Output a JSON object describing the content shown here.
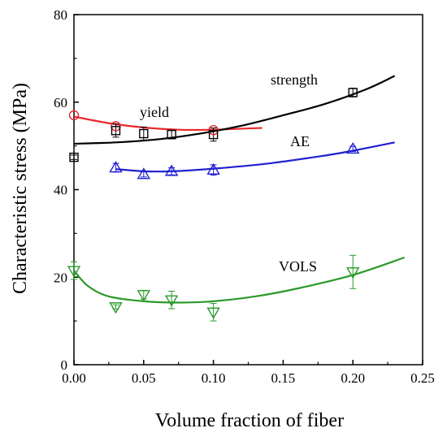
{
  "chart_data": {
    "type": "scatter",
    "xlabel": "Volume fraction of fiber",
    "ylabel": "Characteristic stress (MPa)",
    "xlim": [
      0.0,
      0.25
    ],
    "ylim": [
      0,
      80
    ],
    "x_ticks": [
      "0.00",
      "0.05",
      "0.10",
      "0.15",
      "0.20",
      "0.25"
    ],
    "y_ticks": [
      "0",
      "20",
      "40",
      "60",
      "80"
    ],
    "grid": false,
    "legend": "none",
    "series": [
      {
        "name": "yield",
        "color": "#e8282d",
        "marker": "circle",
        "points": [
          [
            0.0,
            57.0
          ],
          [
            0.03,
            54.5
          ],
          [
            0.1,
            53.6
          ]
        ],
        "fit_curve": [
          [
            0.0,
            56.7
          ],
          [
            0.025,
            55.2
          ],
          [
            0.05,
            54.2
          ],
          [
            0.075,
            53.7
          ],
          [
            0.1,
            53.7
          ],
          [
            0.125,
            54.0
          ],
          [
            0.135,
            54.1
          ]
        ]
      },
      {
        "name": "strength",
        "color": "#000000",
        "marker": "square",
        "points": [
          [
            0.0,
            47.4
          ],
          [
            0.03,
            53.5
          ],
          [
            0.05,
            52.8
          ],
          [
            0.07,
            52.6
          ],
          [
            0.1,
            52.6
          ],
          [
            0.2,
            62.2
          ]
        ],
        "error": [
          0.5,
          1.5,
          1.5,
          1.0,
          1.5,
          1.0
        ],
        "fit_curve": [
          [
            0.0,
            50.5
          ],
          [
            0.03,
            50.8
          ],
          [
            0.06,
            51.5
          ],
          [
            0.09,
            52.8
          ],
          [
            0.12,
            54.6
          ],
          [
            0.15,
            57.0
          ],
          [
            0.18,
            59.6
          ],
          [
            0.21,
            63.0
          ],
          [
            0.23,
            66.0
          ]
        ]
      },
      {
        "name": "AE",
        "color": "#2020d0",
        "marker": "triangle-up",
        "points": [
          [
            0.03,
            45.0
          ],
          [
            0.05,
            43.5
          ],
          [
            0.07,
            44.2
          ],
          [
            0.1,
            44.5
          ],
          [
            0.2,
            49.3
          ]
        ],
        "error": [
          1.0,
          0.6,
          0.8,
          1.2,
          0.6
        ],
        "fit_curve": [
          [
            0.03,
            44.7
          ],
          [
            0.05,
            44.2
          ],
          [
            0.07,
            44.2
          ],
          [
            0.1,
            44.8
          ],
          [
            0.14,
            46.0
          ],
          [
            0.18,
            47.8
          ],
          [
            0.2,
            48.9
          ],
          [
            0.23,
            50.8
          ]
        ]
      },
      {
        "name": "VOLS",
        "color": "#2a9a2a",
        "marker": "triangle-down",
        "points": [
          [
            0.0,
            21.5
          ],
          [
            0.03,
            13.2
          ],
          [
            0.05,
            16.0
          ],
          [
            0.07,
            14.8
          ],
          [
            0.1,
            12.0
          ],
          [
            0.2,
            21.2
          ]
        ],
        "error": [
          2.0,
          0.5,
          1.0,
          2.0,
          2.0,
          3.8
        ],
        "fit_curve": [
          [
            0.0,
            21.5
          ],
          [
            0.01,
            18.0
          ],
          [
            0.025,
            15.6
          ],
          [
            0.05,
            14.5
          ],
          [
            0.075,
            14.2
          ],
          [
            0.1,
            14.5
          ],
          [
            0.13,
            15.6
          ],
          [
            0.16,
            17.4
          ],
          [
            0.2,
            20.5
          ],
          [
            0.237,
            24.5
          ]
        ]
      }
    ]
  }
}
